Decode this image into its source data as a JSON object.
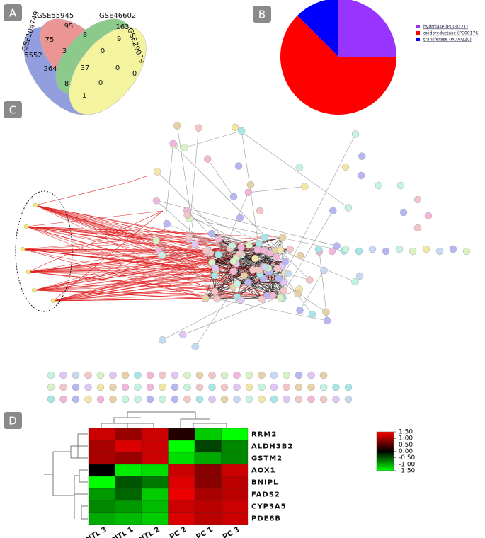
{
  "panels": [
    "A",
    "B",
    "C",
    "D"
  ],
  "chart_data": [
    {
      "type": "venn",
      "sets": [
        "GSE104749",
        "GSE55945",
        "GSE46602",
        "GSE29079"
      ],
      "regions": [
        95,
        163,
        5552,
        0,
        75,
        8,
        9,
        3,
        0,
        264,
        37,
        0,
        8,
        0,
        1
      ]
    },
    {
      "type": "pie",
      "categories": [
        "hydrolase (PC00121)",
        "oxidoreductase (PC00176)",
        "transferase (PC00220)"
      ],
      "values": [
        25,
        62.5,
        12.5
      ],
      "colors": [
        "#9933ff",
        "#ff0000",
        "#0000ff"
      ]
    },
    {
      "type": "heatmap",
      "rows": [
        "RRM2",
        "ALDH3B2",
        "GSTM2",
        "AOX1",
        "BNIPL",
        "FADS2",
        "CYP3A5",
        "PDE8B"
      ],
      "columns": [
        "CNTL 3",
        "CNTL 1",
        "CNTL 2",
        "PC 2",
        "PC 1",
        "PC 3"
      ],
      "values": [
        [
          1.2,
          0.9,
          1.2,
          0.2,
          -1.2,
          -1.5
        ],
        [
          1.0,
          1.3,
          1.2,
          -1.5,
          -0.4,
          -0.8
        ],
        [
          1.0,
          0.9,
          1.2,
          -1.3,
          -1.0,
          -0.8
        ],
        [
          0.0,
          -1.4,
          -1.3,
          1.2,
          0.8,
          1.2
        ],
        [
          -1.5,
          -0.5,
          -0.7,
          1.3,
          0.8,
          1.1
        ],
        [
          -0.9,
          -0.6,
          -1.2,
          1.4,
          1.0,
          1.1
        ],
        [
          -0.8,
          -0.9,
          -1.1,
          1.2,
          1.1,
          1.2
        ],
        [
          -1.0,
          -1.1,
          -1.2,
          1.3,
          1.1,
          1.2
        ]
      ],
      "ylim": [
        -1.5,
        1.5
      ],
      "yticks": [
        {
          "value": 1.5,
          "label": "1.50"
        },
        {
          "value": 1,
          "label": "1.00"
        },
        {
          "value": 0.5,
          "label": "0.50"
        },
        {
          "value": 0,
          "label": "0.00"
        },
        {
          "value": -0.5,
          "label": "-0.50"
        },
        {
          "value": -1,
          "label": "-1.00"
        },
        {
          "value": -1.5,
          "label": "-1.50"
        }
      ]
    }
  ]
}
